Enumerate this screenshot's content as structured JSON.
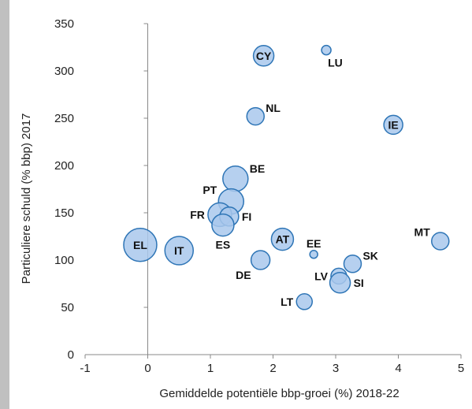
{
  "chart_data": {
    "type": "scatter",
    "title": "",
    "xlabel": "Gemiddelde potentiële bbp-groei (%) 2018-22",
    "ylabel": "Particuliere schuld (% bbp) 2017",
    "xlim": [
      -1,
      5
    ],
    "ylim": [
      0,
      350
    ],
    "xticks": [
      "-1",
      "0",
      "1",
      "2",
      "3",
      "4",
      "5"
    ],
    "yticks": [
      "0",
      "50",
      "100",
      "150",
      "200",
      "250",
      "300",
      "350"
    ],
    "grid": false,
    "bubble_fill": "#a9c8ec",
    "bubble_stroke": "#2e75b6",
    "points": [
      {
        "label": "LU",
        "x": 2.85,
        "y": 322,
        "r": 6,
        "label_pos": "below-right"
      },
      {
        "label": "CY",
        "x": 1.85,
        "y": 316,
        "r": 13,
        "label_pos": "center"
      },
      {
        "label": "NL",
        "x": 1.72,
        "y": 252,
        "r": 11,
        "label_pos": "upper-right"
      },
      {
        "label": "IE",
        "x": 3.92,
        "y": 243,
        "r": 12,
        "label_pos": "center"
      },
      {
        "label": "BE",
        "x": 1.4,
        "y": 186,
        "r": 16,
        "label_pos": "upper-right"
      },
      {
        "label": "PT",
        "x": 1.33,
        "y": 162,
        "r": 16,
        "label_pos": "upper-left"
      },
      {
        "label": "FR",
        "x": 1.15,
        "y": 148,
        "r": 15,
        "label_pos": "left"
      },
      {
        "label": "FI",
        "x": 1.3,
        "y": 146,
        "r": 12,
        "label_pos": "right"
      },
      {
        "label": "ES",
        "x": 1.2,
        "y": 137,
        "r": 14,
        "label_pos": "below"
      },
      {
        "label": "AT",
        "x": 2.15,
        "y": 122,
        "r": 14,
        "label_pos": "center"
      },
      {
        "label": "EL",
        "x": -0.12,
        "y": 116,
        "r": 21,
        "label_pos": "center"
      },
      {
        "label": "IT",
        "x": 0.5,
        "y": 110,
        "r": 18,
        "label_pos": "center"
      },
      {
        "label": "MT",
        "x": 4.67,
        "y": 120,
        "r": 11,
        "label_pos": "upper-left"
      },
      {
        "label": "EE",
        "x": 2.65,
        "y": 106,
        "r": 5,
        "label_pos": "above"
      },
      {
        "label": "SK",
        "x": 3.27,
        "y": 96,
        "r": 11,
        "label_pos": "upper-right"
      },
      {
        "label": "DE",
        "x": 1.8,
        "y": 100,
        "r": 12,
        "label_pos": "below-left"
      },
      {
        "label": "LV",
        "x": 3.05,
        "y": 83,
        "r": 10,
        "label_pos": "left"
      },
      {
        "label": "SI",
        "x": 3.07,
        "y": 76,
        "r": 13,
        "label_pos": "right"
      },
      {
        "label": "LT",
        "x": 2.5,
        "y": 56,
        "r": 10,
        "label_pos": "left"
      }
    ]
  }
}
